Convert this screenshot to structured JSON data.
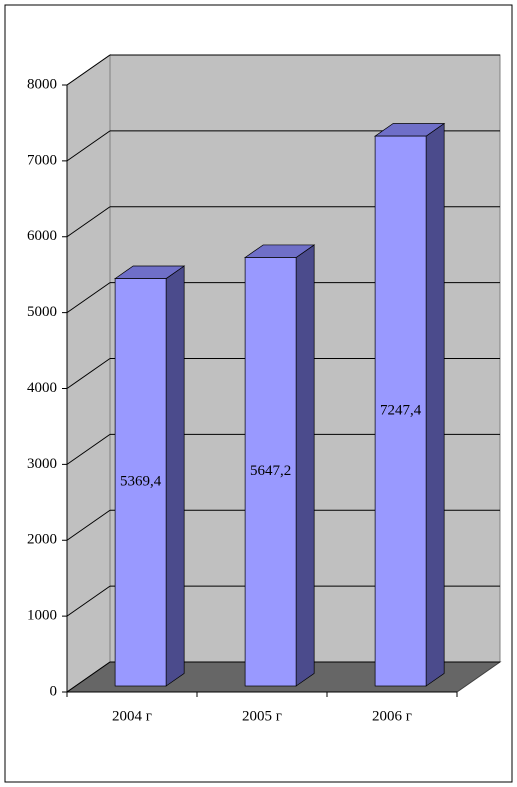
{
  "chart_data": {
    "type": "bar3d",
    "categories": [
      "2004 г",
      "2005 г",
      "2006 г"
    ],
    "values": [
      5369.4,
      5647.2,
      7247.4
    ],
    "value_labels": [
      "5369,4",
      "5647,2",
      "7247,4"
    ],
    "color": "#9999ff",
    "ylim": [
      0,
      8000
    ],
    "yticks": [
      0,
      1000,
      2000,
      3000,
      4000,
      5000,
      6000,
      7000,
      8000
    ],
    "grid": true
  }
}
